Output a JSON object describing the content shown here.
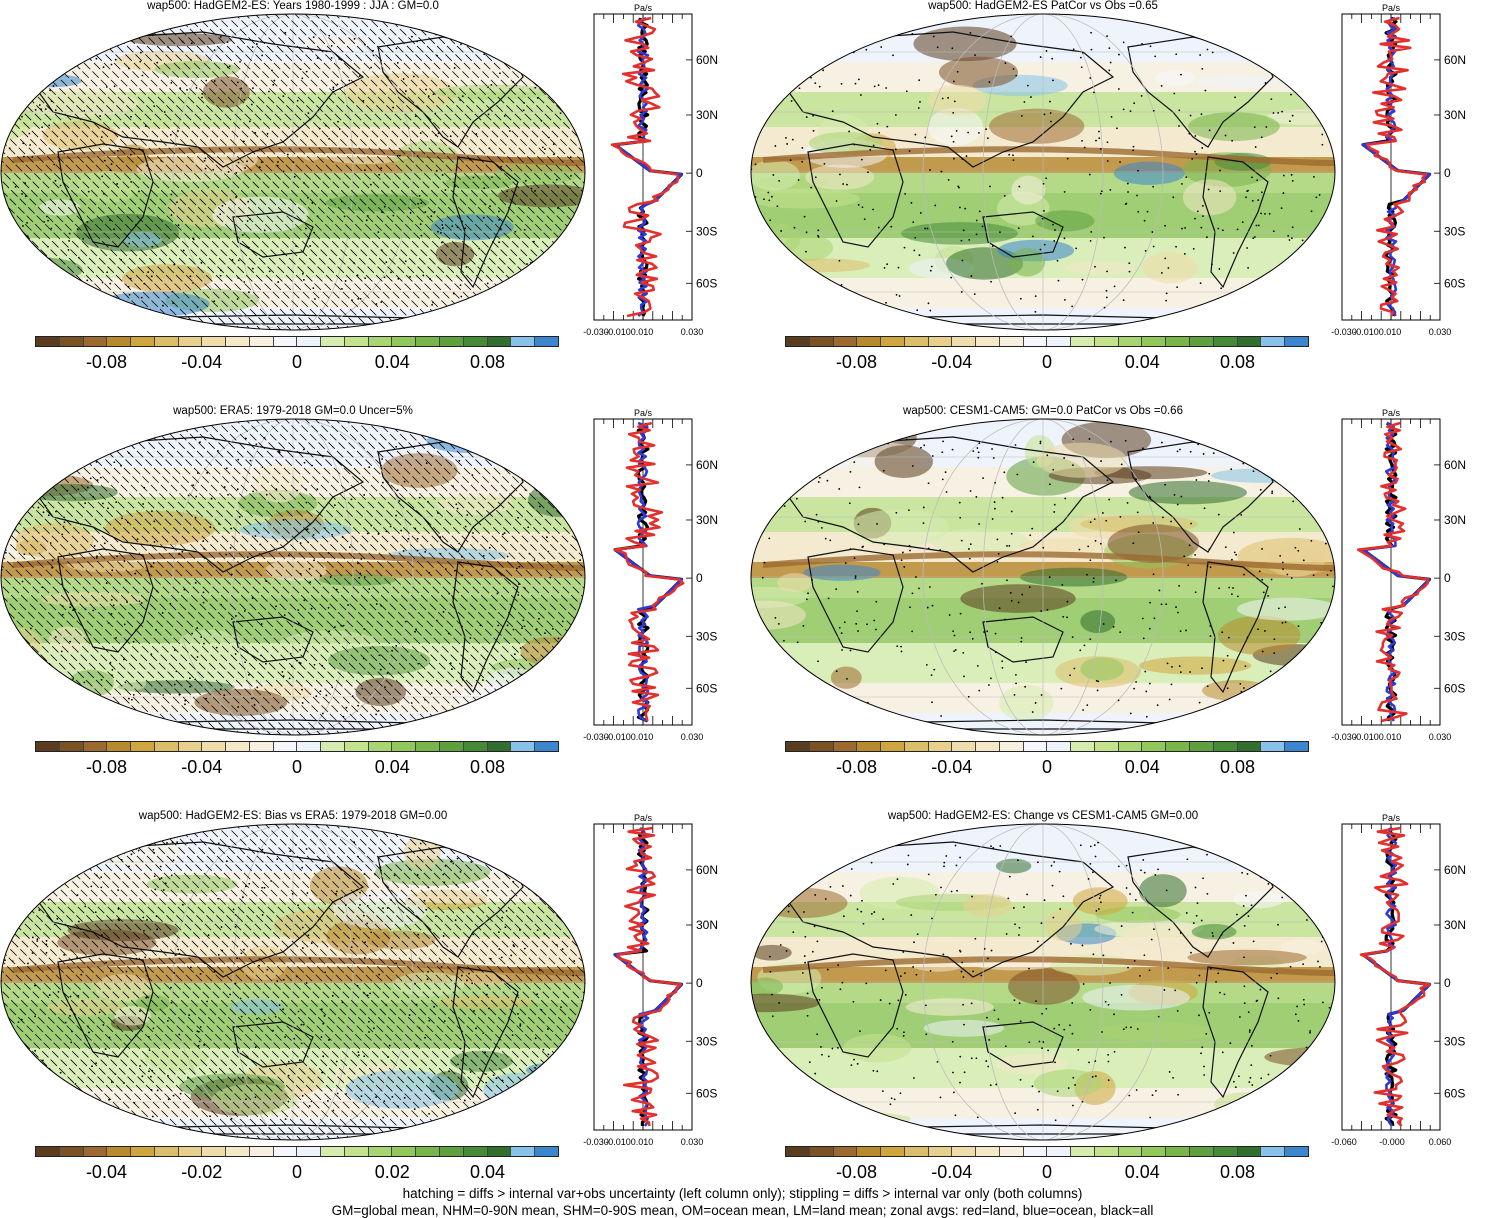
{
  "colors": {
    "palette": [
      "#5a3d1e",
      "#7b5126",
      "#9c6a30",
      "#b88a2e",
      "#cfa53d",
      "#dcbd6a",
      "#e7cf8e",
      "#eedcaa",
      "#f4e8c8",
      "#f8f0de",
      "#f5f7fc",
      "#eef2fb",
      "#d6ecae",
      "#c2e28e",
      "#a9d472",
      "#92c75c",
      "#79b54a",
      "#5ea040",
      "#468a38",
      "#326e2e",
      "#86c2ea",
      "#3b86cc"
    ],
    "land": "#e3302d",
    "ocean": "#2f39d8",
    "all": "#000000"
  },
  "panels": [
    {
      "title": "wap500: HadGEM2-ES: Years 1980-1999 : JJA : GM=0.0",
      "hatched": true,
      "profile_unit": "Pa/s",
      "profile_x_labels": [
        "-0.030",
        "-0.010",
        "0.010",
        "0.030"
      ],
      "profile_y_labels": [
        "60N",
        "30N",
        "0",
        "30S",
        "60S"
      ],
      "cbar_labels": [
        "-0.08",
        "-0.04",
        "0",
        "0.04",
        "0.08"
      ]
    },
    {
      "title": "wap500: HadGEM2-ES PatCor vs Obs =0.65",
      "hatched": false,
      "profile_unit": "Pa/s",
      "profile_x_labels": [
        "-0.030",
        "-0.010",
        "0.010",
        "0.030"
      ],
      "profile_y_labels": [
        "60N",
        "30N",
        "0",
        "30S",
        "60S"
      ],
      "cbar_labels": [
        "-0.08",
        "-0.04",
        "0",
        "0.04",
        "0.08"
      ]
    },
    {
      "title": "wap500: ERA5: 1979-2018 GM=0.0 Uncer=5%",
      "hatched": true,
      "profile_unit": "Pa/s",
      "profile_x_labels": [
        "-0.030",
        "-0.010",
        "0.010",
        "0.030"
      ],
      "profile_y_labels": [
        "60N",
        "30N",
        "0",
        "30S",
        "60S"
      ],
      "cbar_labels": [
        "-0.08",
        "-0.04",
        "0",
        "0.04",
        "0.08"
      ]
    },
    {
      "title": "wap500: CESM1-CAM5: GM=0.0 PatCor vs Obs =0.66",
      "hatched": false,
      "profile_unit": "Pa/s",
      "profile_x_labels": [
        "-0.030",
        "-0.010",
        "0.010",
        "0.030"
      ],
      "profile_y_labels": [
        "60N",
        "30N",
        "0",
        "30S",
        "60S"
      ],
      "cbar_labels": [
        "-0.08",
        "-0.04",
        "0",
        "0.04",
        "0.08"
      ]
    },
    {
      "title": "wap500: HadGEM2-ES: Bias vs ERA5: 1979-2018 GM=0.00",
      "hatched": true,
      "profile_unit": "Pa/s",
      "profile_x_labels": [
        "-0.030",
        "-0.010",
        "0.010",
        "0.030"
      ],
      "profile_y_labels": [
        "60N",
        "30N",
        "0",
        "30S",
        "60S"
      ],
      "cbar_labels": [
        "-0.04",
        "-0.02",
        "0",
        "0.02",
        "0.04"
      ]
    },
    {
      "title": "wap500: HadGEM2-ES: Change vs CESM1-CAM5 GM=0.00",
      "hatched": false,
      "profile_unit": "Pa/s",
      "profile_x_labels": [
        "-0.060",
        "-0.000",
        "0.060"
      ],
      "profile_y_labels": [
        "60N",
        "30N",
        "0",
        "30S",
        "60S"
      ],
      "cbar_labels": [
        "-0.08",
        "-0.04",
        "0",
        "0.04",
        "0.08"
      ]
    }
  ],
  "footer": {
    "line1": "hatching = diffs > internal var+obs uncertainty (left column only); stippling = diffs > internal var only (both columns)",
    "line2": "GM=global mean, NHM=0-90N mean, SHM=0-90S mean, OM=ocean mean, LM=land mean; zonal avgs: red=land, blue=ocean, black=all"
  }
}
